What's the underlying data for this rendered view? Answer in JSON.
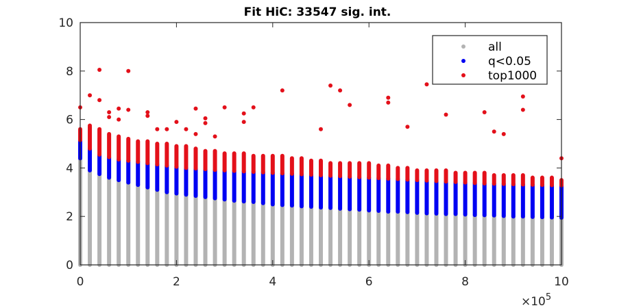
{
  "chart_data": {
    "type": "scatter",
    "title": "Fit HiC: 33547 sig. int.",
    "xlabel": "",
    "ylabel": "",
    "xlim": [
      0,
      1000000
    ],
    "ylim": [
      0,
      10
    ],
    "x_ticks": [
      0,
      200000,
      400000,
      600000,
      800000,
      1000000
    ],
    "x_tick_labels": [
      "0",
      "2",
      "4",
      "6",
      "8",
      "10"
    ],
    "x_exponent_label": "×10",
    "x_exponent_power": "5",
    "y_ticks": [
      0,
      2,
      4,
      6,
      8,
      10
    ],
    "y_tick_labels": [
      "0",
      "2",
      "4",
      "6",
      "8",
      "10"
    ],
    "grid": false,
    "legend_position": "top-right",
    "columns_x": [
      0,
      20000,
      40000,
      60000,
      80000,
      100000,
      120000,
      140000,
      160000,
      180000,
      200000,
      220000,
      240000,
      260000,
      280000,
      300000,
      320000,
      340000,
      360000,
      380000,
      400000,
      420000,
      440000,
      460000,
      480000,
      500000,
      520000,
      540000,
      560000,
      580000,
      600000,
      620000,
      640000,
      660000,
      680000,
      700000,
      720000,
      740000,
      760000,
      780000,
      800000,
      820000,
      840000,
      860000,
      880000,
      900000,
      920000,
      940000,
      960000,
      980000,
      1000000
    ],
    "series": [
      {
        "name": "all",
        "color": "#b3b3b3",
        "y_min": [
          0,
          0,
          0,
          0,
          0,
          0,
          0,
          0,
          0,
          0,
          0,
          0,
          0,
          0,
          0,
          0,
          0,
          0,
          0,
          0,
          0,
          0,
          0,
          0,
          0,
          0,
          0,
          0,
          0,
          0,
          0,
          0,
          0,
          0,
          0,
          0,
          0,
          0,
          0,
          0,
          0,
          0,
          0,
          0,
          0,
          0,
          0,
          0,
          0,
          0,
          0
        ],
        "y_max": [
          4.4,
          3.9,
          3.75,
          3.6,
          3.5,
          3.4,
          3.3,
          3.2,
          3.1,
          3.0,
          2.95,
          2.9,
          2.85,
          2.8,
          2.75,
          2.7,
          2.65,
          2.62,
          2.6,
          2.55,
          2.5,
          2.47,
          2.45,
          2.42,
          2.4,
          2.37,
          2.35,
          2.32,
          2.3,
          2.28,
          2.25,
          2.23,
          2.2,
          2.2,
          2.18,
          2.15,
          2.13,
          2.12,
          2.1,
          2.1,
          2.08,
          2.06,
          2.05,
          2.04,
          2.02,
          2.0,
          2.0,
          1.98,
          1.97,
          1.96,
          1.95
        ]
      },
      {
        "name": "q<0.05",
        "color": "#0000f2",
        "y_min": [
          4.4,
          3.9,
          3.75,
          3.6,
          3.5,
          3.4,
          3.3,
          3.2,
          3.1,
          3.0,
          2.95,
          2.9,
          2.85,
          2.8,
          2.75,
          2.7,
          2.65,
          2.62,
          2.6,
          2.55,
          2.5,
          2.47,
          2.45,
          2.42,
          2.4,
          2.37,
          2.35,
          2.32,
          2.3,
          2.28,
          2.25,
          2.23,
          2.2,
          2.2,
          2.18,
          2.15,
          2.13,
          2.12,
          2.1,
          2.1,
          2.08,
          2.06,
          2.05,
          2.04,
          2.02,
          2.0,
          2.0,
          1.98,
          1.97,
          1.96,
          1.95
        ],
        "y_max": [
          5.15,
          4.8,
          4.55,
          4.45,
          4.35,
          4.3,
          4.25,
          4.2,
          4.15,
          4.1,
          4.05,
          4.0,
          3.98,
          3.95,
          3.92,
          3.9,
          3.88,
          3.86,
          3.84,
          3.82,
          3.8,
          3.78,
          3.76,
          3.74,
          3.72,
          3.7,
          3.68,
          3.66,
          3.64,
          3.62,
          3.6,
          3.58,
          3.56,
          3.54,
          3.52,
          3.5,
          3.48,
          3.46,
          3.44,
          3.42,
          3.4,
          3.38,
          3.36,
          3.35,
          3.34,
          3.33,
          3.32,
          3.31,
          3.3,
          3.29,
          3.28
        ]
      },
      {
        "name": "top1000",
        "color": "#e3101a",
        "y_min": [
          5.15,
          4.8,
          4.55,
          4.45,
          4.35,
          4.3,
          4.25,
          4.2,
          4.15,
          4.1,
          4.05,
          4.0,
          3.98,
          3.95,
          3.92,
          3.9,
          3.88,
          3.86,
          3.84,
          3.82,
          3.8,
          3.78,
          3.76,
          3.74,
          3.72,
          3.7,
          3.68,
          3.66,
          3.64,
          3.62,
          3.6,
          3.58,
          3.56,
          3.54,
          3.52,
          3.5,
          3.48,
          3.46,
          3.44,
          3.42,
          3.4,
          3.38,
          3.36,
          3.35,
          3.34,
          3.33,
          3.32,
          3.31,
          3.3,
          3.29,
          3.28
        ],
        "y_max": [
          5.6,
          5.7,
          5.6,
          5.4,
          5.3,
          5.2,
          5.1,
          5.1,
          5.0,
          5.0,
          4.9,
          4.9,
          4.8,
          4.7,
          4.7,
          4.6,
          4.6,
          4.6,
          4.5,
          4.5,
          4.5,
          4.5,
          4.4,
          4.4,
          4.3,
          4.3,
          4.2,
          4.2,
          4.2,
          4.2,
          4.2,
          4.1,
          4.1,
          4.0,
          4.0,
          3.9,
          3.9,
          3.9,
          3.9,
          3.8,
          3.8,
          3.8,
          3.8,
          3.7,
          3.7,
          3.7,
          3.7,
          3.6,
          3.6,
          3.6,
          3.5
        ]
      }
    ],
    "top1000_outliers": [
      {
        "x": 0,
        "y": 6.5
      },
      {
        "x": 0,
        "y": 5.55
      },
      {
        "x": 20000,
        "y": 7.0
      },
      {
        "x": 20000,
        "y": 5.75
      },
      {
        "x": 40000,
        "y": 8.05
      },
      {
        "x": 40000,
        "y": 6.8
      },
      {
        "x": 60000,
        "y": 6.3
      },
      {
        "x": 60000,
        "y": 6.1
      },
      {
        "x": 80000,
        "y": 6.45
      },
      {
        "x": 80000,
        "y": 6.0
      },
      {
        "x": 100000,
        "y": 8.0
      },
      {
        "x": 100000,
        "y": 6.4
      },
      {
        "x": 140000,
        "y": 6.3
      },
      {
        "x": 140000,
        "y": 6.15
      },
      {
        "x": 160000,
        "y": 5.6
      },
      {
        "x": 180000,
        "y": 5.6
      },
      {
        "x": 200000,
        "y": 5.9
      },
      {
        "x": 220000,
        "y": 5.6
      },
      {
        "x": 240000,
        "y": 6.45
      },
      {
        "x": 240000,
        "y": 5.4
      },
      {
        "x": 260000,
        "y": 6.05
      },
      {
        "x": 260000,
        "y": 5.85
      },
      {
        "x": 280000,
        "y": 5.3
      },
      {
        "x": 300000,
        "y": 6.5
      },
      {
        "x": 340000,
        "y": 6.25
      },
      {
        "x": 340000,
        "y": 5.9
      },
      {
        "x": 360000,
        "y": 6.5
      },
      {
        "x": 420000,
        "y": 7.2
      },
      {
        "x": 500000,
        "y": 5.6
      },
      {
        "x": 520000,
        "y": 7.4
      },
      {
        "x": 540000,
        "y": 7.2
      },
      {
        "x": 560000,
        "y": 6.6
      },
      {
        "x": 640000,
        "y": 6.9
      },
      {
        "x": 640000,
        "y": 6.7
      },
      {
        "x": 680000,
        "y": 5.7
      },
      {
        "x": 720000,
        "y": 7.45
      },
      {
        "x": 760000,
        "y": 6.2
      },
      {
        "x": 840000,
        "y": 6.3
      },
      {
        "x": 860000,
        "y": 5.5
      },
      {
        "x": 880000,
        "y": 5.4
      },
      {
        "x": 920000,
        "y": 6.95
      },
      {
        "x": 920000,
        "y": 6.4
      },
      {
        "x": 1000000,
        "y": 4.4
      }
    ],
    "legend": [
      {
        "label": "all",
        "color": "#b3b3b3"
      },
      {
        "label": "q<0.05",
        "color": "#0000f2"
      },
      {
        "label": "top1000",
        "color": "#e3101a"
      }
    ]
  }
}
